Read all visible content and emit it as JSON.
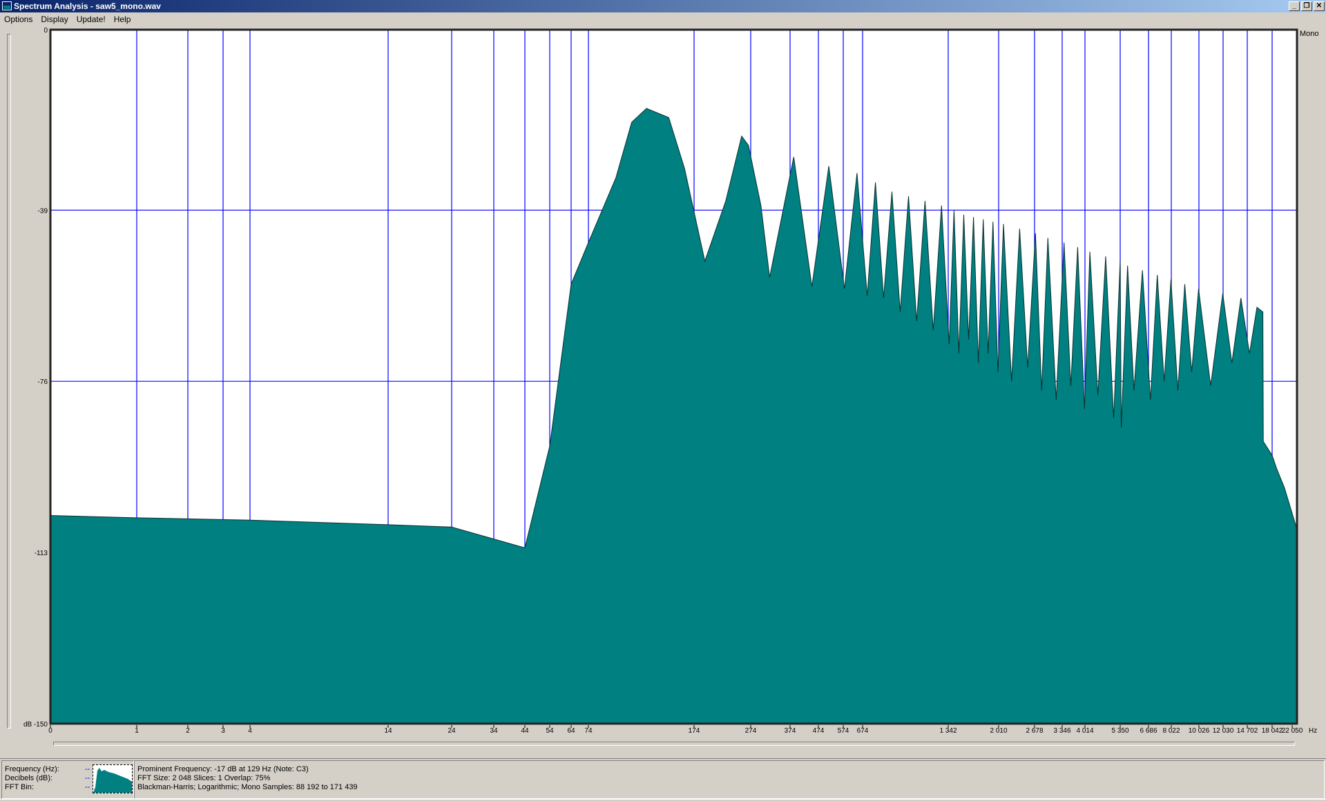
{
  "window": {
    "title": "Spectrum Analysis - saw5_mono.wav",
    "buttons": [
      "minimize",
      "restore",
      "close"
    ]
  },
  "menu": [
    "Options",
    "Display",
    "Update!",
    "Help"
  ],
  "channel_label": "Mono",
  "status": {
    "labels": [
      "Frequency (Hz):",
      "Decibels (dB):",
      "FFT Bin:"
    ],
    "values": [
      "--",
      "--",
      "--"
    ],
    "lines": [
      "Prominent Frequency: -17 dB at 129 Hz (Note: C3)",
      "FFT Size: 2 048  Slices: 1  Overlap: 75%",
      "Blackman-Harris; Logarithmic; Mono  Samples: 88 192 to 171 439"
    ]
  },
  "colors": {
    "fill": "#008080",
    "grid": "#0000ff",
    "background": "#ffffff"
  },
  "chart_data": {
    "type": "area",
    "xlabel": "Hz",
    "ylabel": "dB",
    "x_scale": "logarithmic",
    "ylim": [
      -150,
      0
    ],
    "grid": true,
    "y_ticks": [
      {
        "value": 0,
        "label": "0"
      },
      {
        "value": -39,
        "label": "-39"
      },
      {
        "value": -76,
        "label": "-76"
      },
      {
        "value": -113,
        "label": "-113"
      },
      {
        "value": -150,
        "label": "dB -150"
      }
    ],
    "x_ticks": [
      0,
      1,
      2,
      3,
      4,
      14,
      24,
      34,
      44,
      54,
      64,
      74,
      174,
      274,
      374,
      474,
      574,
      674,
      1342,
      2010,
      2678,
      3346,
      4014,
      5350,
      6686,
      8022,
      10026,
      12030,
      14702,
      18042,
      22050
    ],
    "x_tick_labels": [
      "0",
      "1",
      "2",
      "3",
      "4",
      "14",
      "24",
      "34",
      "44",
      "54",
      "64",
      "74",
      "174",
      "274",
      "374",
      "474",
      "574",
      "674",
      "1 342",
      "2 010",
      "2 678",
      "3 346",
      "4 014",
      "5 350",
      "6 686",
      "8 022",
      "10 026",
      "12 030",
      "14 702",
      "18 042",
      "22 050"
    ],
    "points": [
      [
        0,
        -105
      ],
      [
        1,
        -105.5
      ],
      [
        4,
        -106
      ],
      [
        14,
        -107
      ],
      [
        24,
        -107.5
      ],
      [
        44,
        -112
      ],
      [
        54,
        -90
      ],
      [
        64,
        -55
      ],
      [
        74,
        -46
      ],
      [
        100,
        -32
      ],
      [
        115,
        -20
      ],
      [
        129,
        -17
      ],
      [
        150,
        -19
      ],
      [
        165,
        -30
      ],
      [
        193,
        -50
      ],
      [
        230,
        -37
      ],
      [
        258,
        -23
      ],
      [
        270,
        -25
      ],
      [
        300,
        -38
      ],
      [
        322,
        -53.5
      ],
      [
        387,
        -27.5
      ],
      [
        451,
        -55.5
      ],
      [
        516,
        -29.5
      ],
      [
        580,
        -56
      ],
      [
        645,
        -31
      ],
      [
        710,
        -57.5
      ],
      [
        774,
        -33
      ],
      [
        838,
        -58
      ],
      [
        903,
        -35
      ],
      [
        967,
        -61
      ],
      [
        1032,
        -36
      ],
      [
        1096,
        -63
      ],
      [
        1161,
        -37
      ],
      [
        1225,
        -65
      ],
      [
        1290,
        -38
      ],
      [
        1354,
        -68
      ],
      [
        1419,
        -39
      ],
      [
        1483,
        -70
      ],
      [
        1548,
        -40
      ],
      [
        1612,
        -67
      ],
      [
        1677,
        -40.5
      ],
      [
        1741,
        -72
      ],
      [
        1806,
        -41
      ],
      [
        1870,
        -70
      ],
      [
        1935,
        -41.5
      ],
      [
        2000,
        -74
      ],
      [
        2100,
        -42
      ],
      [
        2250,
        -76
      ],
      [
        2400,
        -43
      ],
      [
        2550,
        -73
      ],
      [
        2700,
        -44
      ],
      [
        2850,
        -78
      ],
      [
        3000,
        -45
      ],
      [
        3200,
        -80
      ],
      [
        3400,
        -46
      ],
      [
        3600,
        -77
      ],
      [
        3800,
        -47
      ],
      [
        4000,
        -82
      ],
      [
        4200,
        -48
      ],
      [
        4500,
        -79
      ],
      [
        4800,
        -49
      ],
      [
        5100,
        -84
      ],
      [
        5350,
        -50
      ],
      [
        5400,
        -86
      ],
      [
        5700,
        -51
      ],
      [
        6000,
        -78
      ],
      [
        6400,
        -52
      ],
      [
        6800,
        -80
      ],
      [
        7200,
        -53
      ],
      [
        7600,
        -76
      ],
      [
        8000,
        -54
      ],
      [
        8500,
        -78
      ],
      [
        9000,
        -55
      ],
      [
        9500,
        -74
      ],
      [
        10000,
        -56
      ],
      [
        11000,
        -77
      ],
      [
        12000,
        -57
      ],
      [
        13000,
        -72
      ],
      [
        14000,
        -58
      ],
      [
        15000,
        -70
      ],
      [
        16000,
        -60
      ],
      [
        16800,
        -61
      ],
      [
        16850,
        -89
      ],
      [
        18042,
        -92
      ],
      [
        19000,
        -95
      ],
      [
        20500,
        -99
      ],
      [
        22050,
        -108
      ]
    ]
  }
}
